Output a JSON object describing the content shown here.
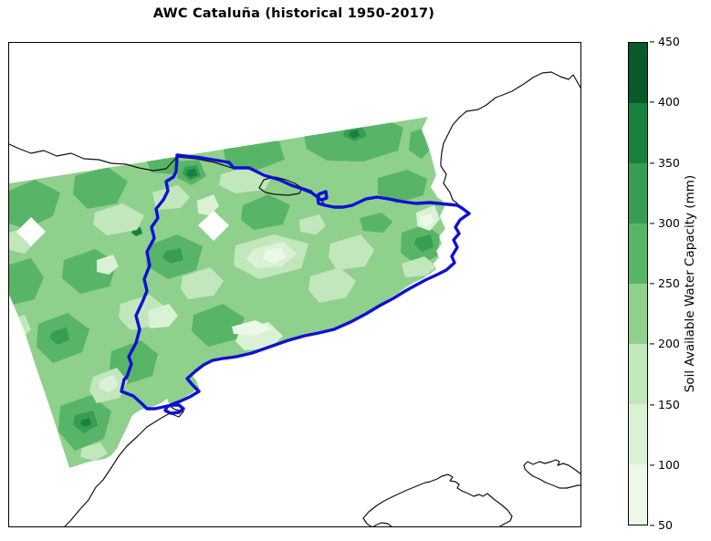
{
  "title": "AWC Cataluña (historical 1950-2017)",
  "colorbar": {
    "label": "Soil Available Water Capacity (mm)",
    "min": 50,
    "max": 450,
    "ticks_top_to_bottom": [
      "450",
      "400",
      "350",
      "300",
      "250",
      "200",
      "150",
      "100",
      "50"
    ],
    "segments_top_to_bottom": [
      {
        "range": "400-450",
        "color": "#08592b"
      },
      {
        "range": "350-400",
        "color": "#17823f"
      },
      {
        "range": "300-350",
        "color": "#379d52"
      },
      {
        "range": "250-300",
        "color": "#58b567"
      },
      {
        "range": "200-250",
        "color": "#8fd08d"
      },
      {
        "range": "150-200",
        "color": "#c3e7bc"
      },
      {
        "range": "100-150",
        "color": "#dbf1d5"
      },
      {
        "range": "50-100",
        "color": "#ecf8e8"
      }
    ]
  },
  "chart_data": {
    "type": "heatmap",
    "subtype": "filled-contour-map",
    "title": "AWC Cataluña (historical 1950-2017)",
    "variable": "Soil Available Water Capacity (mm)",
    "colorbar_levels": [
      50,
      100,
      150,
      200,
      250,
      300,
      350,
      400,
      450
    ],
    "colorbar_colors": [
      "#ecf8e8",
      "#dbf1d5",
      "#c3e7bc",
      "#8fd08d",
      "#58b567",
      "#379d52",
      "#17823f",
      "#08592b"
    ],
    "dominant_value_range_mm": "200-250",
    "legend_position": "right",
    "overlays": {
      "region_border": {
        "name": "Cataluña boundary",
        "color": "#1010d6"
      },
      "coastlines_and_borders": {
        "name": "coastlines, France-Spain border, Andorra, Mallorca, Menorca",
        "color": "#111111"
      },
      "missing_data": "white diamond holes inside data region"
    }
  },
  "map": {
    "base_color": "#8fd08d",
    "border_blue": "#1010d6",
    "coast_black": "#111111"
  }
}
